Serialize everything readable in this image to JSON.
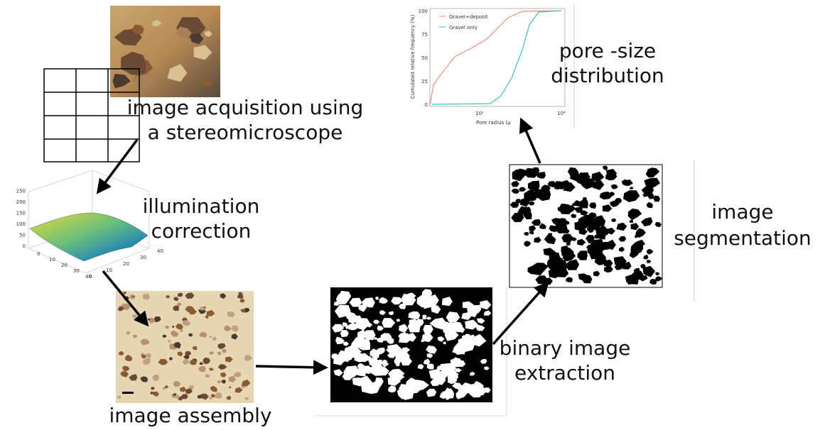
{
  "nodes": [
    {
      "label_lines": [
        "image acquisition using",
        "a stereomicroscope"
      ]
    },
    {
      "label_lines": [
        "illumination",
        "correction"
      ]
    },
    {
      "label_lines": [
        "image assembly"
      ]
    },
    {
      "label_lines": [
        "binary image",
        "extraction"
      ]
    },
    {
      "label_lines": [
        "image",
        "segmentation"
      ]
    },
    {
      "label_lines": [
        "pore -size",
        "distribution"
      ]
    }
  ],
  "surface_plot": {
    "z_tick_labels": [
      "0",
      "50",
      "100",
      "150",
      "200",
      "250"
    ],
    "front_tick_labels": [
      "0",
      "10",
      "20",
      "30",
      "40"
    ],
    "side_tick_labels": [
      "0",
      "10",
      "20",
      "30",
      "40"
    ]
  },
  "inset_chart": {
    "y_axis_label": "Cumulated relative frequency (%)",
    "x_axis_label": "Pore radius (μ",
    "y_tick_labels": [
      "0",
      "25",
      "50",
      "75",
      "100"
    ],
    "x_tick_labels": [
      "10²",
      "10⁴"
    ],
    "legend": [
      "Gravel+deposit",
      "Gravel only"
    ]
  }
}
